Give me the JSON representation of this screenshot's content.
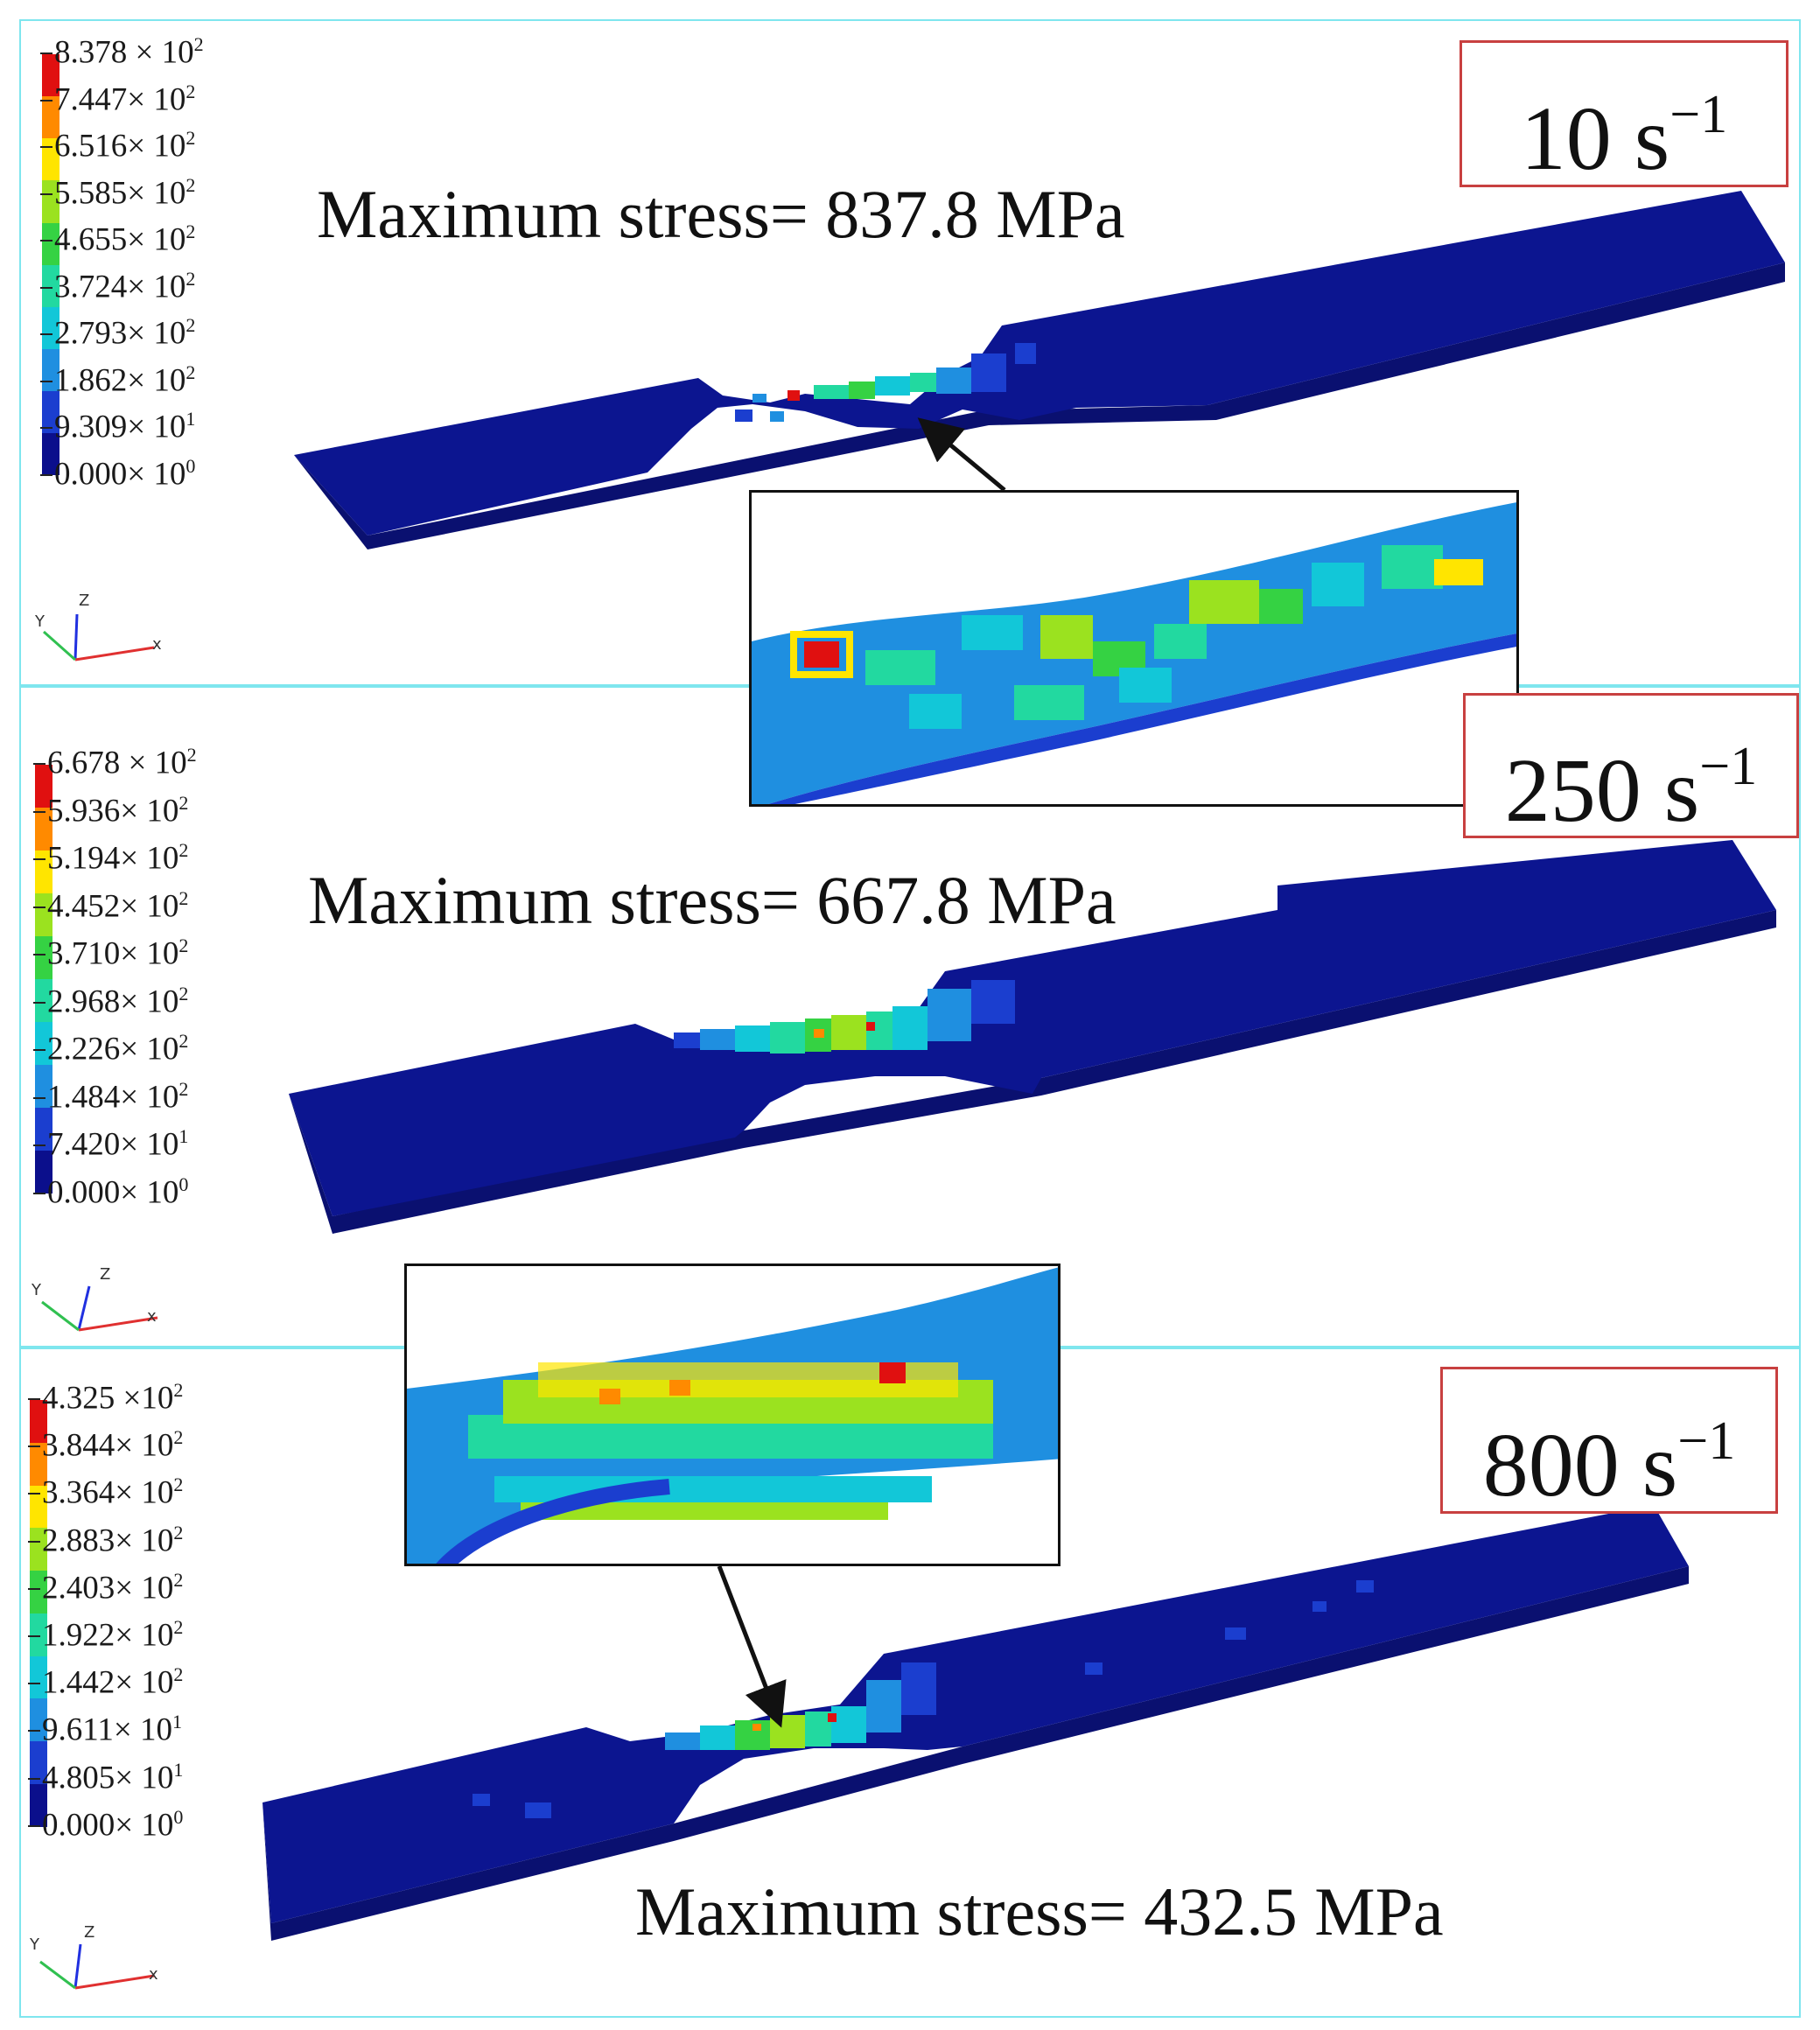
{
  "colors": {
    "panel_border": "#7fe6ee",
    "rate_box_border": "#c84040",
    "legend_scale": [
      "#0b0f8c",
      "#1b3ecf",
      "#1f8fe0",
      "#12c7d8",
      "#22d9a0",
      "#35d243",
      "#9be21f",
      "#ffe500",
      "#ff8a00",
      "#e01010"
    ],
    "specimen_base": "#0c1590",
    "specimen_side": "#0a1070"
  },
  "panels": [
    {
      "rate_value": "10 s",
      "rate_exp": "−1",
      "max_stress": "Maximum stress= 837.8 MPa",
      "legend": [
        {
          "mant": "8.378 × 10",
          "exp": "2"
        },
        {
          "mant": "7.447× 10",
          "exp": "2"
        },
        {
          "mant": "6.516× 10",
          "exp": "2"
        },
        {
          "mant": "5.585× 10",
          "exp": "2"
        },
        {
          "mant": "4.655× 10",
          "exp": "2"
        },
        {
          "mant": "3.724× 10",
          "exp": "2"
        },
        {
          "mant": "2.793× 10",
          "exp": "2"
        },
        {
          "mant": "1.862× 10",
          "exp": "2"
        },
        {
          "mant": "9.309× 10",
          "exp": "1"
        },
        {
          "mant": "0.000× 10",
          "exp": "0"
        }
      ],
      "axes": {
        "x": "x",
        "y": "Y",
        "z": "Z"
      }
    },
    {
      "rate_value": "250 s",
      "rate_exp": "−1",
      "max_stress": "Maximum stress= 667.8 MPa",
      "legend": [
        {
          "mant": "6.678 × 10",
          "exp": "2"
        },
        {
          "mant": "5.936× 10",
          "exp": "2"
        },
        {
          "mant": "5.194× 10",
          "exp": "2"
        },
        {
          "mant": "4.452× 10",
          "exp": "2"
        },
        {
          "mant": "3.710× 10",
          "exp": "2"
        },
        {
          "mant": "2.968× 10",
          "exp": "2"
        },
        {
          "mant": "2.226× 10",
          "exp": "2"
        },
        {
          "mant": "1.484× 10",
          "exp": "2"
        },
        {
          "mant": "7.420× 10",
          "exp": "1"
        },
        {
          "mant": "0.000× 10",
          "exp": "0"
        }
      ],
      "axes": {
        "x": "x",
        "y": "Y",
        "z": "Z"
      }
    },
    {
      "rate_value": "800 s",
      "rate_exp": "−1",
      "max_stress": "Maximum stress= 432.5 MPa",
      "legend": [
        {
          "mant": "4.325 ×10",
          "exp": "2"
        },
        {
          "mant": "3.844× 10",
          "exp": "2"
        },
        {
          "mant": "3.364× 10",
          "exp": "2"
        },
        {
          "mant": "2.883× 10",
          "exp": "2"
        },
        {
          "mant": "2.403× 10",
          "exp": "2"
        },
        {
          "mant": "1.922× 10",
          "exp": "2"
        },
        {
          "mant": "1.442× 10",
          "exp": "2"
        },
        {
          "mant": "9.611× 10",
          "exp": "1"
        },
        {
          "mant": "4.805× 10",
          "exp": "1"
        },
        {
          "mant": "0.000× 10",
          "exp": "0"
        }
      ],
      "axes": {
        "x": "x",
        "y": "Y",
        "z": "Z"
      }
    }
  ]
}
